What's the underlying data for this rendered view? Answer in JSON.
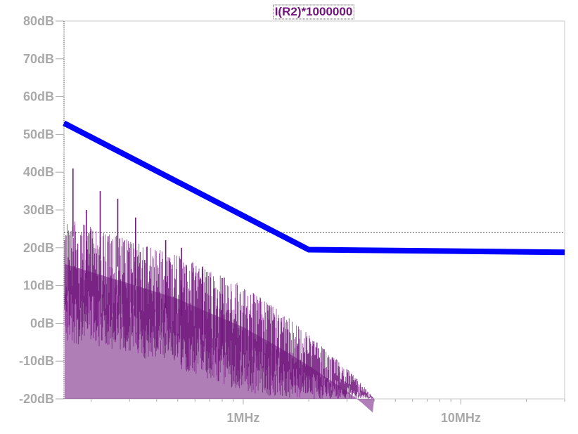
{
  "chart_data": {
    "type": "line",
    "title": "I(R2)*1000000",
    "xscale": "log",
    "xlim_hz": [
      150000,
      30000000
    ],
    "ylim": [
      -20,
      80
    ],
    "y_ticks": [
      {
        "value": 80,
        "label": "80dB"
      },
      {
        "value": 70,
        "label": "70dB"
      },
      {
        "value": 60,
        "label": "60dB"
      },
      {
        "value": 50,
        "label": "50dB"
      },
      {
        "value": 40,
        "label": "40dB"
      },
      {
        "value": 30,
        "label": "30dB"
      },
      {
        "value": 20,
        "label": "20dB"
      },
      {
        "value": 10,
        "label": "10dB"
      },
      {
        "value": 0,
        "label": "0dB"
      },
      {
        "value": -10,
        "label": "-10dB"
      },
      {
        "value": -20,
        "label": "-20dB"
      }
    ],
    "x_ticks": [
      {
        "value": 1000000,
        "label": "1MHz"
      },
      {
        "value": 10000000,
        "label": "10MHz"
      }
    ],
    "grid": false,
    "cursor_level_db": 24,
    "series": [
      {
        "kind": "limit",
        "color": "#0000ff",
        "x": [
          150000,
          2000000,
          30000000
        ],
        "y": [
          53,
          19.5,
          18.8
        ]
      },
      {
        "kind": "spectrum",
        "color": "#70147c",
        "envelope_x": [
          150000,
          300000,
          500000,
          700000,
          1000000,
          1500000,
          2000000,
          3000000,
          3500000,
          4000000
        ],
        "envelope_peak_db": [
          28,
          22,
          18,
          14,
          10,
          3,
          -3,
          -12,
          -16,
          -20
        ],
        "envelope_floor_db": [
          -5,
          -8,
          -12,
          -15,
          -18,
          -20,
          -20,
          -20,
          -20,
          -20
        ],
        "peaks": [
          {
            "x": 165000,
            "y": 41
          },
          {
            "x": 220000,
            "y": 35
          },
          {
            "x": 265000,
            "y": 33
          },
          {
            "x": 320000,
            "y": 28
          },
          {
            "x": 190000,
            "y": 30
          },
          {
            "x": 440000,
            "y": 22
          },
          {
            "x": 520000,
            "y": 20
          },
          {
            "x": 650000,
            "y": 15
          },
          {
            "x": 800000,
            "y": 12
          }
        ]
      }
    ]
  }
}
